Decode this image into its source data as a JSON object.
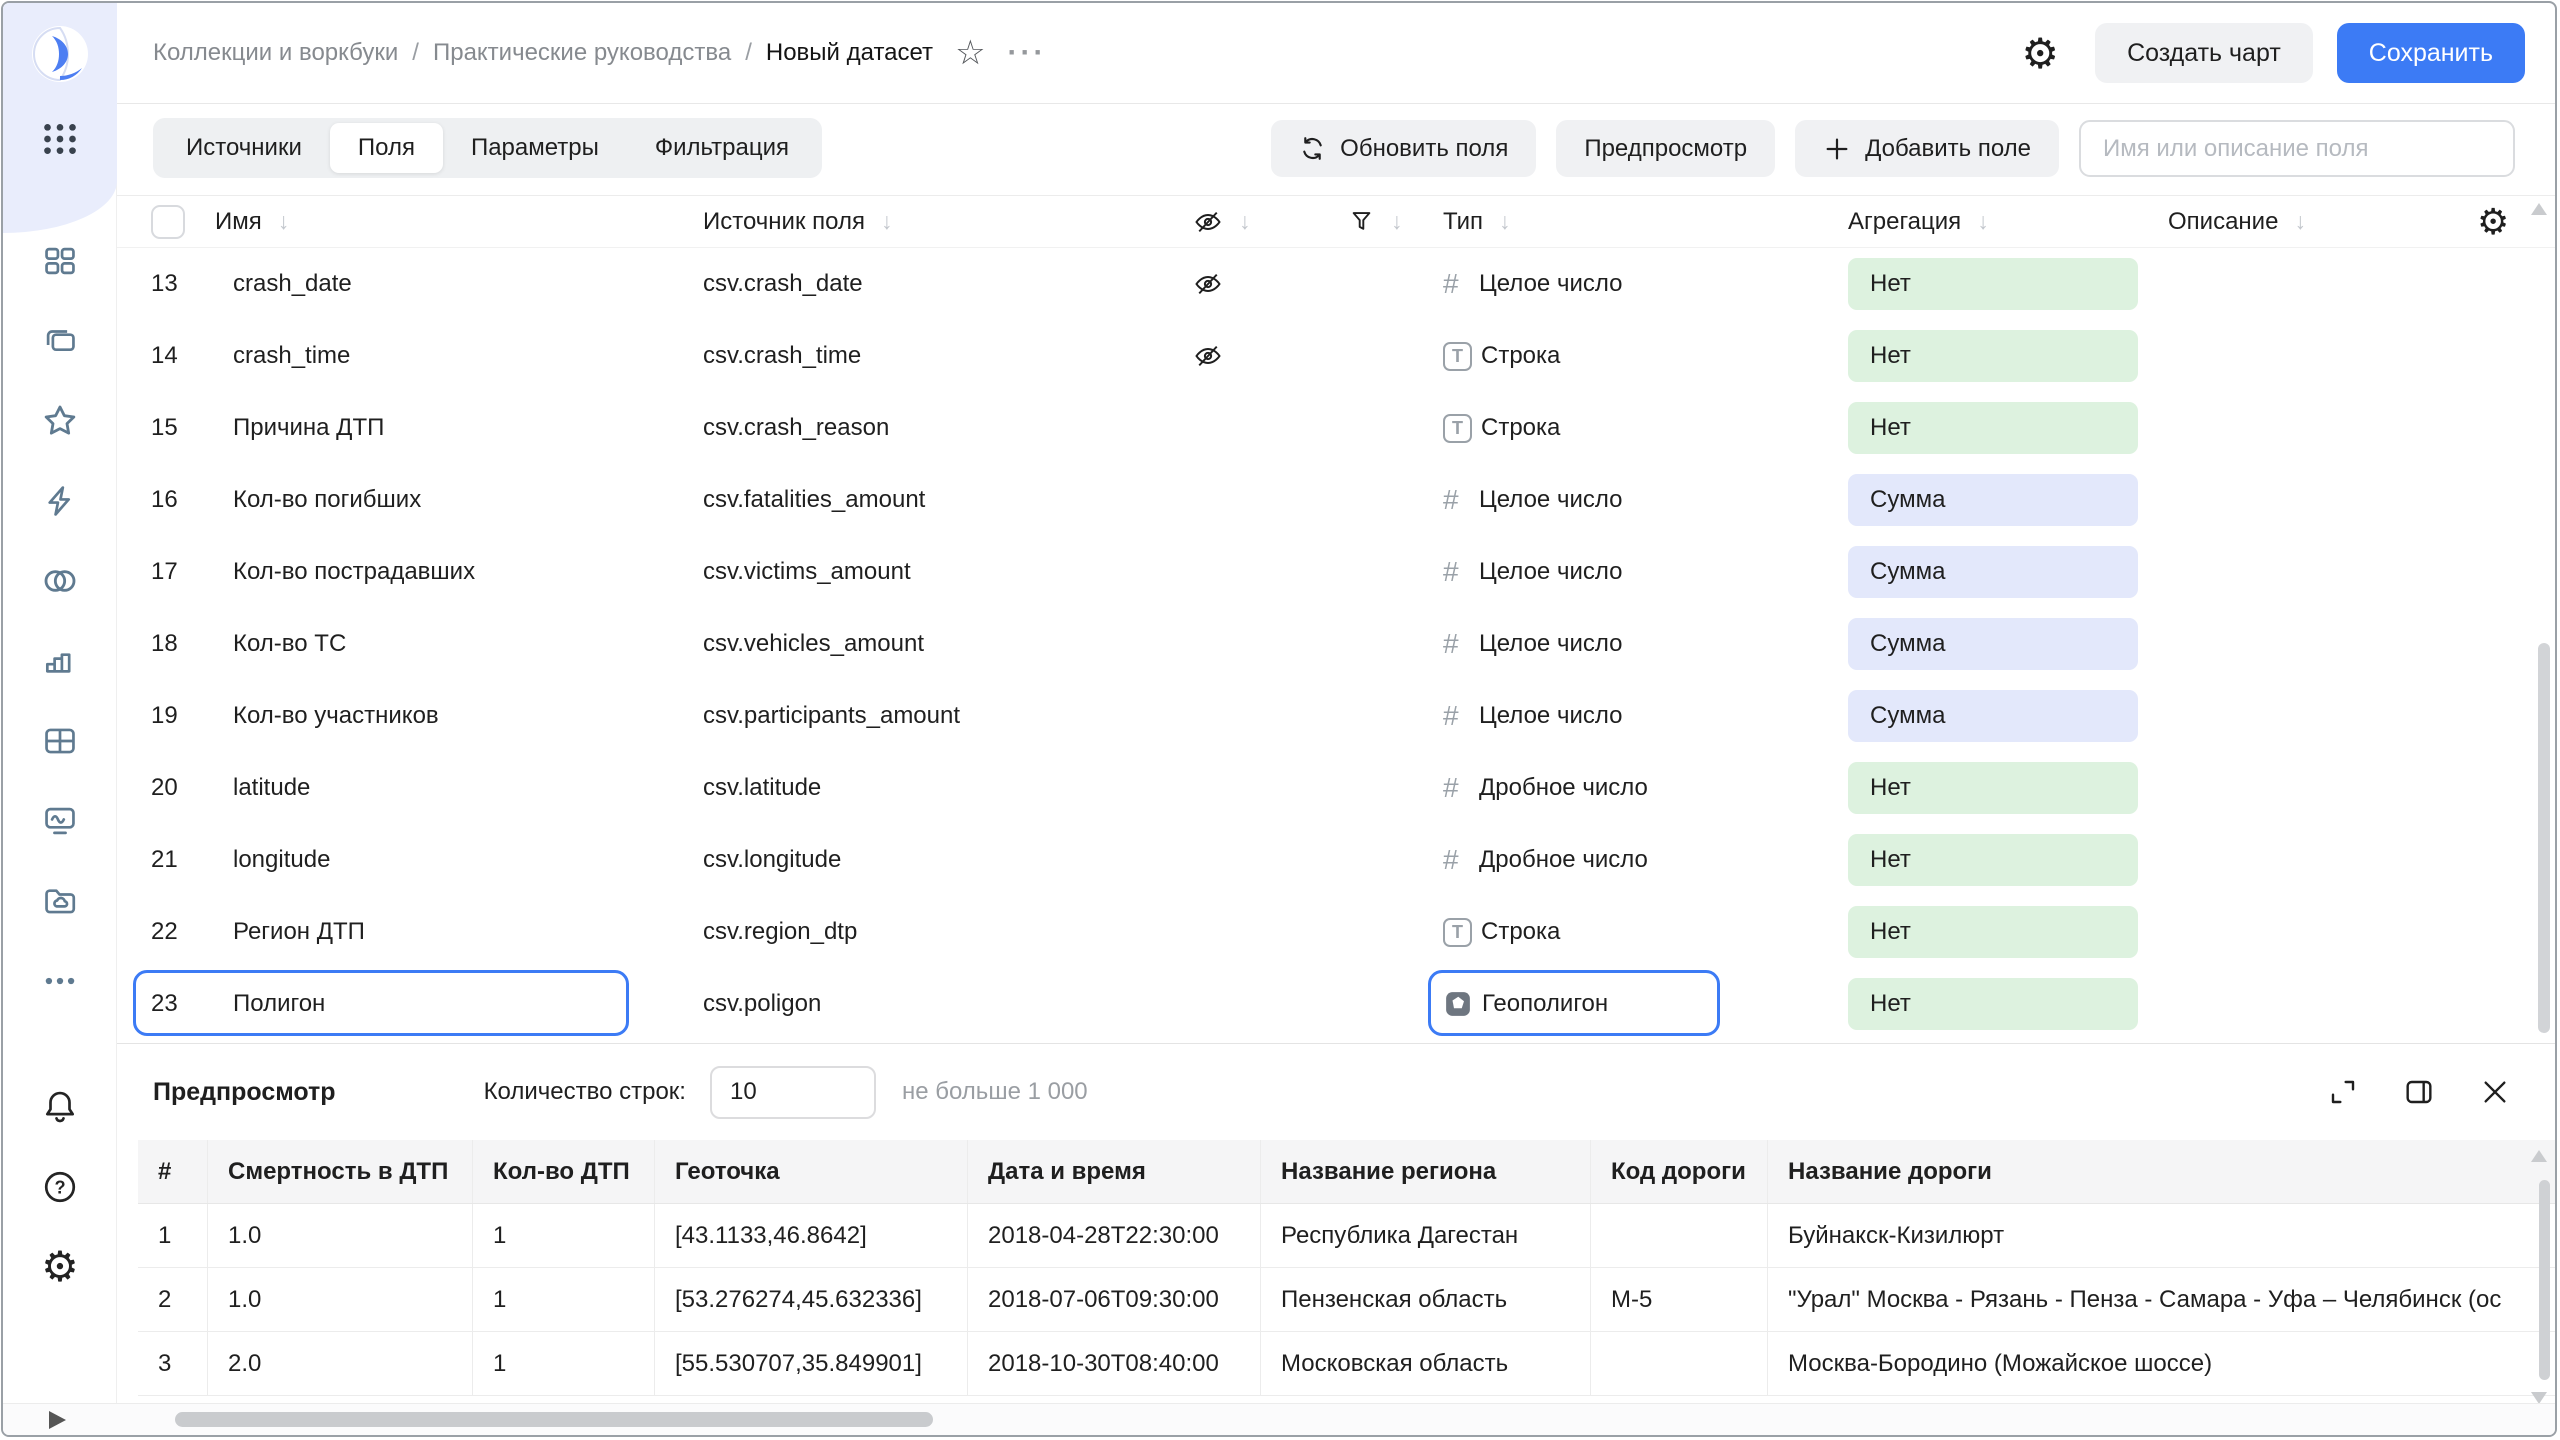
{
  "icons": {
    "sort_desc": "↓",
    "gear": "⚙",
    "star": "☆",
    "more": "···",
    "close": "×"
  },
  "header": {
    "breadcrumbs": [
      "Коллекции и воркбуки",
      "Практические руководства",
      "Новый датасет"
    ],
    "separator": "/",
    "create_chart_label": "Создать чарт",
    "save_label": "Сохранить"
  },
  "toolbar": {
    "tabs": [
      {
        "label": "Источники",
        "active": false
      },
      {
        "label": "Поля",
        "active": true
      },
      {
        "label": "Параметры",
        "active": false
      },
      {
        "label": "Фильтрация",
        "active": false
      }
    ],
    "refresh_fields_label": "Обновить поля",
    "preview_label": "Предпросмотр",
    "add_field_label": "Добавить поле",
    "search_placeholder": "Имя или описание поля"
  },
  "fields_table": {
    "columns": {
      "name": "Имя",
      "source": "Источник поля",
      "type": "Тип",
      "aggregation": "Агрегация",
      "description": "Описание"
    },
    "rows": [
      {
        "num": "13",
        "name": "crash_date",
        "source": "csv.crash_date",
        "hidden": true,
        "type_label": "Целое число",
        "type_icon": "number",
        "aggregation": "Нет",
        "agg_style": "green",
        "selected": false
      },
      {
        "num": "14",
        "name": "crash_time",
        "source": "csv.crash_time",
        "hidden": true,
        "type_label": "Строка",
        "type_icon": "string",
        "aggregation": "Нет",
        "agg_style": "green",
        "selected": false
      },
      {
        "num": "15",
        "name": "Причина ДТП",
        "source": "csv.crash_reason",
        "hidden": false,
        "type_label": "Строка",
        "type_icon": "string",
        "aggregation": "Нет",
        "agg_style": "green",
        "selected": false
      },
      {
        "num": "16",
        "name": "Кол-во погибших",
        "source": "csv.fatalities_amount",
        "hidden": false,
        "type_label": "Целое число",
        "type_icon": "number",
        "aggregation": "Сумма",
        "agg_style": "blue",
        "selected": false
      },
      {
        "num": "17",
        "name": "Кол-во пострадавших",
        "source": "csv.victims_amount",
        "hidden": false,
        "type_label": "Целое число",
        "type_icon": "number",
        "aggregation": "Сумма",
        "agg_style": "blue",
        "selected": false
      },
      {
        "num": "18",
        "name": "Кол-во ТС",
        "source": "csv.vehicles_amount",
        "hidden": false,
        "type_label": "Целое число",
        "type_icon": "number",
        "aggregation": "Сумма",
        "agg_style": "blue",
        "selected": false
      },
      {
        "num": "19",
        "name": "Кол-во участников",
        "source": "csv.participants_amount",
        "hidden": false,
        "type_label": "Целое число",
        "type_icon": "number",
        "aggregation": "Сумма",
        "agg_style": "blue",
        "selected": false
      },
      {
        "num": "20",
        "name": "latitude",
        "source": "csv.latitude",
        "hidden": false,
        "type_label": "Дробное число",
        "type_icon": "number",
        "aggregation": "Нет",
        "agg_style": "green",
        "selected": false
      },
      {
        "num": "21",
        "name": "longitude",
        "source": "csv.longitude",
        "hidden": false,
        "type_label": "Дробное число",
        "type_icon": "number",
        "aggregation": "Нет",
        "agg_style": "green",
        "selected": false
      },
      {
        "num": "22",
        "name": "Регион ДТП",
        "source": "csv.region_dtp",
        "hidden": false,
        "type_label": "Строка",
        "type_icon": "string",
        "aggregation": "Нет",
        "agg_style": "green",
        "selected": false
      },
      {
        "num": "23",
        "name": "Полигон",
        "source": "csv.poligon",
        "hidden": false,
        "type_label": "Геополигон",
        "type_icon": "geopolygon",
        "aggregation": "Нет",
        "agg_style": "green",
        "selected": true
      }
    ]
  },
  "preview": {
    "title": "Предпросмотр",
    "row_count_label": "Количество строк:",
    "row_count_value": "10",
    "row_count_hint": "не больше 1 000",
    "columns": [
      "#",
      "Смертность в ДТП",
      "Кол-во ДТП",
      "Геоточка",
      "Дата и время",
      "Название региона",
      "Код дороги",
      "Название дороги"
    ],
    "rows": [
      [
        "1",
        "1.0",
        "1",
        "[43.1133,46.8642]",
        "2018-04-28T22:30:00",
        "Республика Дагестан",
        "",
        "Буйнакск-Кизилюрт"
      ],
      [
        "2",
        "1.0",
        "1",
        "[53.276274,45.632336]",
        "2018-07-06T09:30:00",
        "Пензенская область",
        "М-5",
        "\"Урал\" Москва - Рязань - Пенза - Самара - Уфа – Челябинск (ос"
      ],
      [
        "3",
        "2.0",
        "1",
        "[55.530707,35.849901]",
        "2018-10-30T08:40:00",
        "Московская область",
        "",
        "Москва-Бородино (Можайское шоссе)"
      ]
    ]
  },
  "colors": {
    "accent": "#3c7bf5",
    "selection_outline": "#3c7bf5",
    "badge_none_bg": "#ddf2df",
    "badge_sum_bg": "#e3e8fb",
    "sidebar_top_bg": "#e9edfc"
  }
}
